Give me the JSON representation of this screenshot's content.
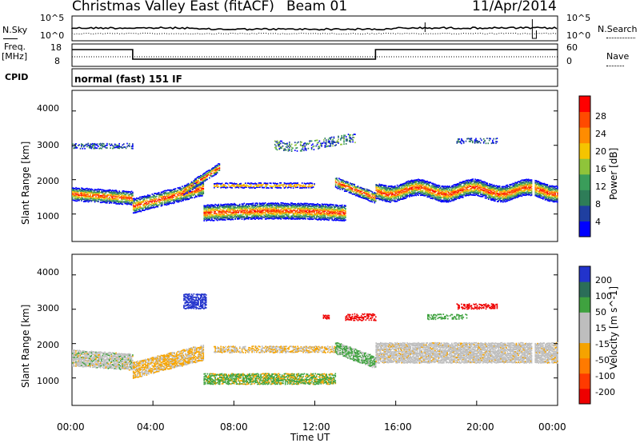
{
  "header": {
    "station": "Christmas Valley East (fitACF)",
    "beam": "Beam 01",
    "date": "11/Apr/2014"
  },
  "noise_panel": {
    "left_label": "N.Sky",
    "right_label": "N.Search",
    "left_ticks": [
      "10^5",
      "10^0"
    ],
    "right_ticks": [
      "10^5",
      "10^0"
    ]
  },
  "freq_panel": {
    "left_label_1": "Freq.",
    "left_label_2": "[MHz]",
    "left_ticks": [
      "18",
      "8"
    ],
    "right_label": "Nave",
    "right_ticks": [
      "60",
      "0"
    ]
  },
  "cpid": {
    "label": "CPID",
    "value": "normal (fast) 151 IF"
  },
  "colors": {
    "power_scale": [
      "#0000ff",
      "#1f3fa0",
      "#2e7d58",
      "#3a9d5a",
      "#8fc43a",
      "#f5c400",
      "#ff8c00",
      "#ff4a00",
      "#ff0000"
    ],
    "velocity_scale": [
      "#2233cc",
      "#2b6e58",
      "#3fa23f",
      "#bebebe",
      "#bebebe",
      "#f5a300",
      "#ff7a00",
      "#ff3a00",
      "#ee0000"
    ]
  },
  "chart_data": [
    {
      "type": "heatmap",
      "panel": "power",
      "ylabel": "Slant Range [km]",
      "yticks": [
        "1000",
        "2000",
        "3000",
        "4000"
      ],
      "ylim": [
        200,
        4600
      ],
      "colorbar_label": "Power [dB]",
      "colorbar_ticks": [
        "28",
        "24",
        "20",
        "16",
        "12",
        "8",
        "4"
      ],
      "colorbar_range": [
        0,
        32
      ]
    },
    {
      "type": "heatmap",
      "panel": "velocity",
      "ylabel": "Slant Range [km]",
      "yticks": [
        "1000",
        "2000",
        "3000",
        "4000"
      ],
      "ylim": [
        200,
        4600
      ],
      "colorbar_label": "Velocity [m s^-1]",
      "colorbar_ticks": [
        "200",
        "100",
        "50",
        "15",
        "-15",
        "-50",
        "-100",
        "-200"
      ]
    }
  ],
  "xaxis": {
    "label": "Time UT",
    "ticks": [
      "00:00",
      "04:00",
      "08:00",
      "12:00",
      "16:00",
      "20:00",
      "00:00"
    ],
    "xlim_hours": [
      0,
      24
    ]
  }
}
